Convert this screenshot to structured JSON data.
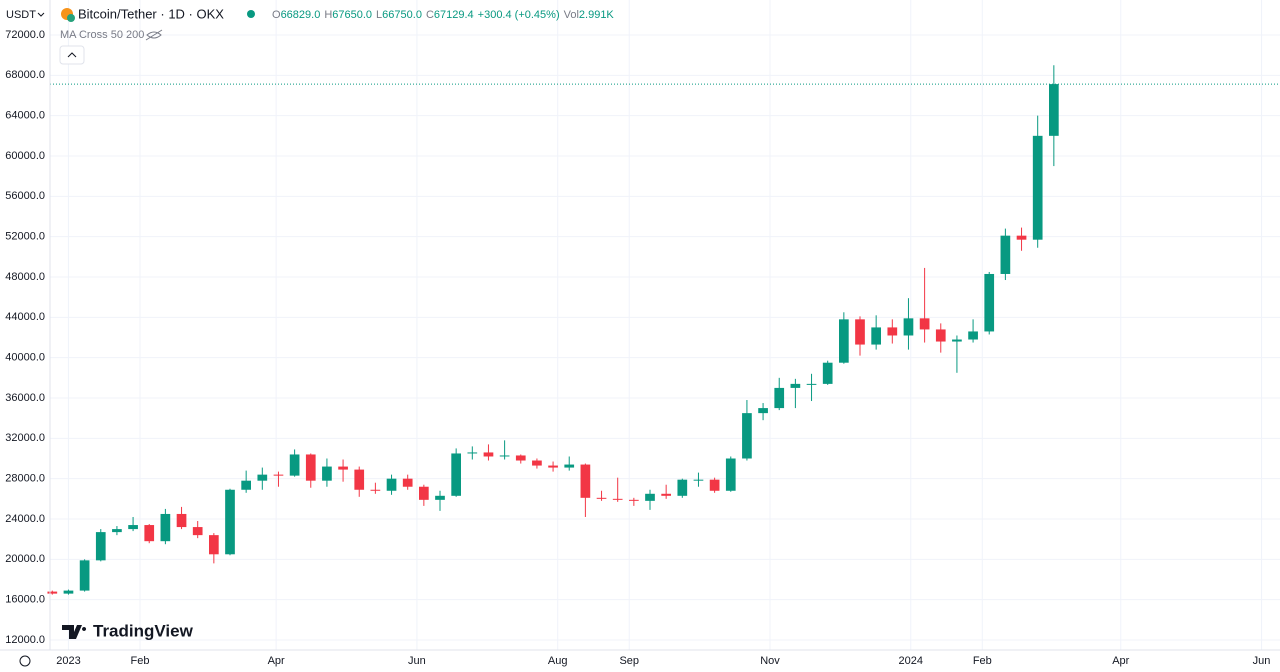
{
  "header": {
    "currency": "USDT",
    "symbol": "Bitcoin/Tether · 1D · OKX",
    "ohlc": [
      {
        "label": "O",
        "value": "66829.0"
      },
      {
        "label": "H",
        "value": "67650.0"
      },
      {
        "label": "L",
        "value": "66750.0"
      },
      {
        "label": "C",
        "value": "67129.4"
      }
    ],
    "change": "+300.4 (+0.45%)",
    "volume_label": "Vol",
    "volume": "2.991K",
    "indicator": "MA Cross 50 200",
    "brand": "TradingView"
  },
  "chart_data": {
    "type": "candlestick",
    "up_color": "#089981",
    "down_color": "#f23645",
    "grid": true,
    "x": [
      -7,
      0,
      7,
      14,
      21,
      28,
      35,
      42,
      49,
      56,
      63,
      70,
      77,
      84,
      91,
      98,
      105,
      112,
      119,
      126,
      133,
      140,
      147,
      154,
      161,
      168,
      175,
      182,
      189,
      196,
      203,
      210,
      217,
      224,
      231,
      238,
      245,
      252,
      259,
      266,
      273,
      280,
      287,
      294,
      301,
      308,
      315,
      322,
      329,
      336,
      343,
      350,
      357,
      364,
      371,
      378,
      385,
      392,
      399,
      406,
      413,
      420,
      427
    ],
    "open": [
      16800,
      16600,
      16900,
      19900,
      22700,
      23000,
      23400,
      21800,
      24500,
      23200,
      22400,
      20500,
      26900,
      27800,
      28400,
      28300,
      30400,
      27800,
      29200,
      28900,
      26900,
      26800,
      28000,
      27200,
      25900,
      26300,
      30500,
      30600,
      30200,
      30300,
      29800,
      29300,
      29100,
      29400,
      26100,
      26000,
      25900,
      25800,
      26500,
      26300,
      27900,
      27900,
      26800,
      30000,
      34500,
      35000,
      37000,
      37400,
      37400,
      39500,
      43800,
      41300,
      43000,
      42200,
      43900,
      42800,
      41600,
      41800,
      42600,
      48300,
      52100,
      51700,
      62000
    ],
    "high": [
      16900,
      17000,
      20000,
      23000,
      23300,
      24200,
      23500,
      25000,
      25200,
      23800,
      22600,
      27000,
      28800,
      29100,
      28700,
      30900,
      30500,
      30000,
      29900,
      29200,
      27600,
      28400,
      28400,
      27400,
      26800,
      31000,
      31200,
      31400,
      31800,
      30400,
      30000,
      29700,
      30200,
      29500,
      26800,
      28100,
      26100,
      26900,
      27400,
      28000,
      28600,
      28100,
      30200,
      35800,
      35500,
      38000,
      37900,
      38400,
      39700,
      44500,
      44100,
      44200,
      43800,
      45900,
      48900,
      43400,
      42200,
      43800,
      48500,
      52800,
      52900,
      64000,
      69000
    ],
    "low": [
      16500,
      16500,
      16800,
      19800,
      22400,
      22800,
      21600,
      21500,
      23000,
      22100,
      19600,
      20400,
      26600,
      26900,
      27200,
      28200,
      27100,
      27200,
      27700,
      26200,
      26500,
      26400,
      26900,
      25300,
      24800,
      26200,
      29900,
      29800,
      29900,
      29500,
      29000,
      28700,
      28800,
      24200,
      25800,
      25700,
      25300,
      24900,
      26000,
      26100,
      27200,
      26600,
      26700,
      29800,
      33800,
      34800,
      35000,
      35700,
      37300,
      39400,
      40200,
      40800,
      41400,
      40800,
      41500,
      40500,
      38500,
      41500,
      42300,
      47700,
      50600,
      50900,
      59000
    ],
    "close": [
      16600,
      16900,
      19900,
      22700,
      23000,
      23400,
      21800,
      24500,
      23200,
      22400,
      20500,
      26900,
      27800,
      28400,
      28300,
      30400,
      27800,
      29200,
      28900,
      26900,
      26800,
      28000,
      27200,
      25900,
      26300,
      30500,
      30600,
      30200,
      30300,
      29800,
      29300,
      29100,
      29400,
      26100,
      26000,
      25900,
      25800,
      26500,
      26300,
      27900,
      27900,
      26800,
      30000,
      34500,
      35000,
      37000,
      37400,
      37400,
      39500,
      43800,
      41300,
      43000,
      42200,
      43900,
      42800,
      41600,
      41800,
      42600,
      48300,
      52100,
      51700,
      62000,
      67129.4
    ],
    "xlim": [
      -8,
      525
    ],
    "xticks": [
      {
        "value": 0,
        "label": "2023"
      },
      {
        "value": 31,
        "label": "Feb"
      },
      {
        "value": 90,
        "label": "Apr"
      },
      {
        "value": 151,
        "label": "Jun"
      },
      {
        "value": 212,
        "label": "Aug"
      },
      {
        "value": 243,
        "label": "Sep"
      },
      {
        "value": 304,
        "label": "Nov"
      },
      {
        "value": 365,
        "label": "2024"
      },
      {
        "value": 396,
        "label": "Feb"
      },
      {
        "value": 456,
        "label": "Apr"
      },
      {
        "value": 517,
        "label": "Jun"
      }
    ],
    "ylim": [
      12000,
      72000
    ],
    "yticks": [
      {
        "value": 12000,
        "label": "12000.0"
      },
      {
        "value": 16000,
        "label": "16000.0"
      },
      {
        "value": 20000,
        "label": "20000.0"
      },
      {
        "value": 24000,
        "label": "24000.0"
      },
      {
        "value": 28000,
        "label": "28000.0"
      },
      {
        "value": 32000,
        "label": "32000.0"
      },
      {
        "value": 36000,
        "label": "36000.0"
      },
      {
        "value": 40000,
        "label": "40000.0"
      },
      {
        "value": 44000,
        "label": "44000.0"
      },
      {
        "value": 48000,
        "label": "48000.0"
      },
      {
        "value": 52000,
        "label": "52000.0"
      },
      {
        "value": 56000,
        "label": "56000.0"
      },
      {
        "value": 60000,
        "label": "60000.0"
      },
      {
        "value": 64000,
        "label": "64000.0"
      },
      {
        "value": 68000,
        "label": "68000.0"
      },
      {
        "value": 72000,
        "label": "72000.0"
      }
    ]
  }
}
